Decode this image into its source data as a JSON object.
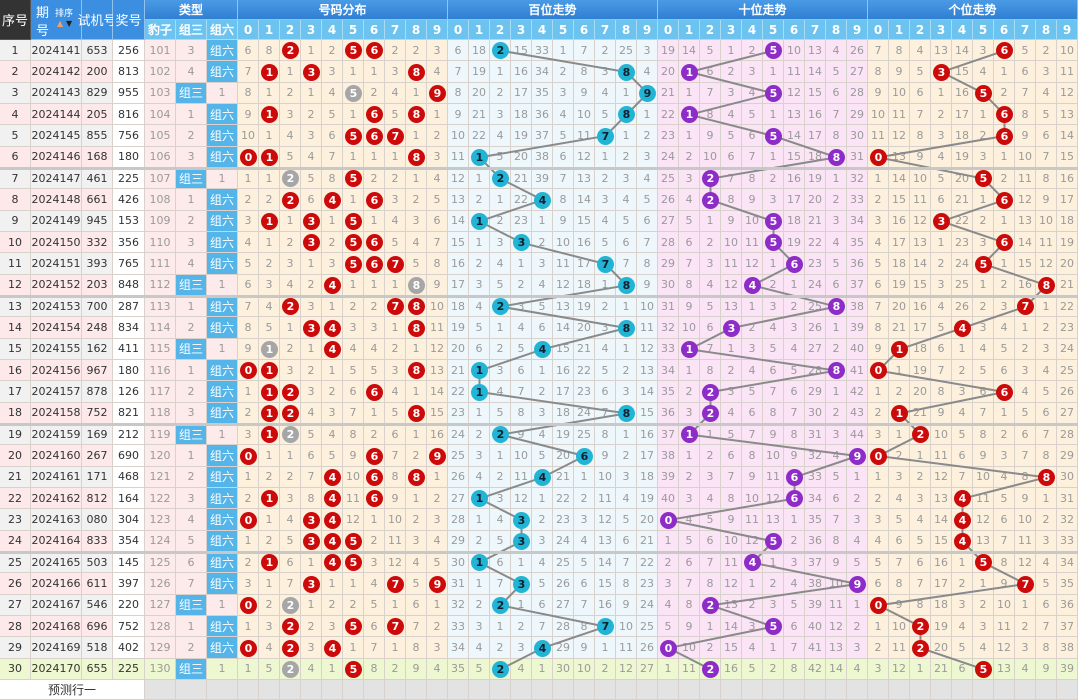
{
  "header": {
    "seq": "序号",
    "period_top": "期",
    "period_bottom": "号",
    "sort": "排序",
    "sort_up_icon": "triangle-up",
    "sort_down_icon": "triangle-down",
    "test": "试机号",
    "prize": "奖号",
    "type": "类型",
    "types": [
      "豹子",
      "组三",
      "组六"
    ],
    "dist": "号码分布",
    "hundreds": "百位走势",
    "tens": "十位走势",
    "units": "个位走势",
    "digits": [
      "0",
      "1",
      "2",
      "3",
      "4",
      "5",
      "6",
      "7",
      "8",
      "9"
    ]
  },
  "labels": {
    "zusan": "组三",
    "zuliu": "组六"
  },
  "first_row_miss": {
    "baozi": 101,
    "zusan": 3,
    "dist": [
      6,
      8,
      null,
      1,
      2,
      null,
      null,
      2,
      2,
      3
    ],
    "hundreds": [
      6,
      18,
      null,
      15,
      33,
      1,
      7,
      2,
      25,
      3
    ],
    "tens": [
      19,
      14,
      5,
      1,
      2,
      null,
      10,
      13,
      4,
      26
    ],
    "units": [
      7,
      8,
      4,
      13,
      14,
      3,
      null,
      5,
      2,
      10
    ]
  },
  "rows": [
    {
      "seq": "1",
      "period": "2024141",
      "test": "653",
      "prize": "256"
    },
    {
      "seq": "2",
      "period": "2024142",
      "test": "200",
      "prize": "813"
    },
    {
      "seq": "3",
      "period": "2024143",
      "test": "829",
      "prize": "955"
    },
    {
      "seq": "4",
      "period": "2024144",
      "test": "205",
      "prize": "816"
    },
    {
      "seq": "5",
      "period": "2024145",
      "test": "855",
      "prize": "756"
    },
    {
      "seq": "6",
      "period": "2024146",
      "test": "168",
      "prize": "180"
    },
    {
      "seq": "7",
      "period": "2024147",
      "test": "461",
      "prize": "225"
    },
    {
      "seq": "8",
      "period": "2024148",
      "test": "661",
      "prize": "426"
    },
    {
      "seq": "9",
      "period": "2024149",
      "test": "945",
      "prize": "153"
    },
    {
      "seq": "10",
      "period": "2024150",
      "test": "332",
      "prize": "356"
    },
    {
      "seq": "11",
      "period": "2024151",
      "test": "393",
      "prize": "765"
    },
    {
      "seq": "12",
      "period": "2024152",
      "test": "203",
      "prize": "848"
    },
    {
      "seq": "13",
      "period": "2024153",
      "test": "700",
      "prize": "287"
    },
    {
      "seq": "14",
      "period": "2024154",
      "test": "248",
      "prize": "834"
    },
    {
      "seq": "15",
      "period": "2024155",
      "test": "162",
      "prize": "411"
    },
    {
      "seq": "16",
      "period": "2024156",
      "test": "967",
      "prize": "180"
    },
    {
      "seq": "17",
      "period": "2024157",
      "test": "878",
      "prize": "126"
    },
    {
      "seq": "18",
      "period": "2024158",
      "test": "752",
      "prize": "821"
    },
    {
      "seq": "19",
      "period": "2024159",
      "test": "169",
      "prize": "212"
    },
    {
      "seq": "20",
      "period": "2024160",
      "test": "267",
      "prize": "690"
    },
    {
      "seq": "21",
      "period": "2024161",
      "test": "171",
      "prize": "468"
    },
    {
      "seq": "22",
      "period": "2024162",
      "test": "812",
      "prize": "164"
    },
    {
      "seq": "23",
      "period": "2024163",
      "test": "080",
      "prize": "304"
    },
    {
      "seq": "24",
      "period": "2024164",
      "test": "833",
      "prize": "354"
    },
    {
      "seq": "25",
      "period": "2024165",
      "test": "503",
      "prize": "145"
    },
    {
      "seq": "26",
      "period": "2024166",
      "test": "611",
      "prize": "397"
    },
    {
      "seq": "27",
      "period": "2024167",
      "test": "546",
      "prize": "220"
    },
    {
      "seq": "28",
      "period": "2024168",
      "test": "696",
      "prize": "752"
    },
    {
      "seq": "29",
      "period": "2024169",
      "test": "518",
      "prize": "402"
    },
    {
      "seq": "30",
      "period": "2024170",
      "test": "655",
      "prize": "225"
    }
  ],
  "footer": {
    "predict": "预测行一"
  },
  "colors": {
    "dist_ball": "#cc0a0a",
    "repeat_ball": "#a6a6a6",
    "hundreds_ball": "#22b4d4",
    "tens_ball": "#8e2cc8",
    "units_ball": "#cc0a0a",
    "trend_line": "#8a8a8a",
    "dist_bg": "#fdf1de",
    "hundreds_bg": "#eef8fc",
    "tens_bg": "#fbe4f6",
    "units_bg": "#fdf1de",
    "last_row_bg": "#eef8d0"
  }
}
